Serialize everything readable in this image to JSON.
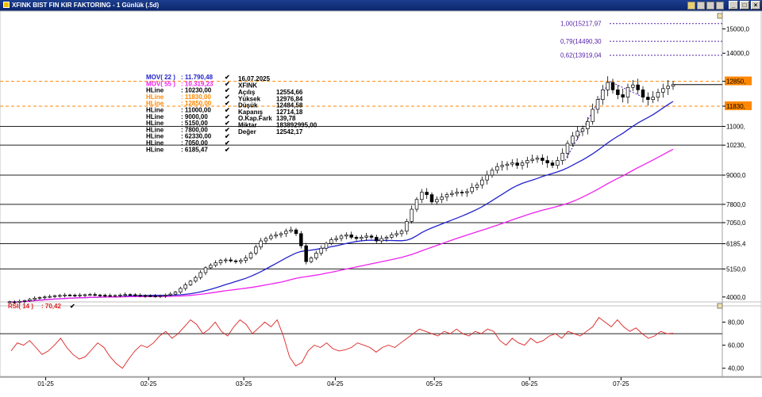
{
  "window": {
    "title": "XFINK BIST FIN KIR FAKTORING - 1 Günlük (.5d)",
    "buttons": [
      "_",
      "□",
      "×"
    ]
  },
  "colors": {
    "mov22": "#2222cc",
    "mov55": "#ee22ee",
    "hline_orange": "#ff8800",
    "fib": "#5522aa",
    "rsi": "#dd2222",
    "candle": "#000000"
  },
  "legend": [
    {
      "label": "MOV( 22 )",
      "value": ": 11.790,48",
      "color": "#2222cc"
    },
    {
      "label": "MOV( 55 )",
      "value": ": 10.319,23",
      "color": "#ee22ee"
    },
    {
      "label": "HLine",
      "value": ": 10230,00",
      "color": "#000000"
    },
    {
      "label": "HLine",
      "value": ": 11830,00",
      "color": "#ff8800"
    },
    {
      "label": "HLine",
      "value": ": 12850,00",
      "color": "#ff8800"
    },
    {
      "label": "HLine",
      "value": ": 11000,00",
      "color": "#000000"
    },
    {
      "label": "HLine",
      "value": ": 9000,00",
      "color": "#000000"
    },
    {
      "label": "HLine",
      "value": ": 5150,00",
      "color": "#000000"
    },
    {
      "label": "HLine",
      "value": ": 7800,00",
      "color": "#000000"
    },
    {
      "label": "HLine",
      "value": ": 62330,00",
      "color": "#000000"
    },
    {
      "label": "HLine",
      "value": ": 7050,00",
      "color": "#000000"
    },
    {
      "label": "HLine",
      "value": ": 6185,47",
      "color": "#000000"
    }
  ],
  "info": {
    "date": "16.07.2025",
    "symbol": "XFINK",
    "rows": [
      {
        "label": "Açılış",
        "value": "12554,66"
      },
      {
        "label": "Yüksek",
        "value": "12976,84"
      },
      {
        "label": "Düşük",
        "value": "12484,58"
      },
      {
        "label": "Kapanış",
        "value": "12714,18"
      },
      {
        "label": "O.Kap.Fark",
        "value": "139,78"
      },
      {
        "label": "Miktar",
        "value": "183892995,00"
      },
      {
        "label": "Değer",
        "value": "12542,17"
      }
    ]
  },
  "rsi": {
    "label": "RSI( 14 )",
    "value": ": 70,42"
  },
  "chart_data": [
    {
      "type": "candlestick",
      "title": "XFINK BIST FIN KIR FAKTORING - 1 Günlük (.5d)",
      "x_ticks": [
        "01-25",
        "02-25",
        "03-25",
        "04-25",
        "05-25",
        "06-25",
        "07-25"
      ],
      "y_ticks": [
        "15000,0",
        "14000,0",
        "12850,",
        "11830,",
        "11000,",
        "10230,",
        "9000,0",
        "7800,0",
        "7050,0",
        "6185,4",
        "5150,0",
        "4000,0"
      ],
      "ylim": [
        3700,
        15600
      ],
      "close_series": [
        3800,
        3780,
        3820,
        3850,
        3900,
        3950,
        3980,
        4000,
        4020,
        4050,
        4060,
        4080,
        4070,
        4060,
        4080,
        4090,
        4100,
        4080,
        4070,
        4060,
        4050,
        4060,
        4080,
        4100,
        4090,
        4070,
        4060,
        4050,
        4040,
        4030,
        4050,
        4080,
        4120,
        4200,
        4350,
        4500,
        4650,
        4800,
        5000,
        5200,
        5300,
        5400,
        5500,
        5520,
        5480,
        5450,
        5500,
        5600,
        5800,
        6050,
        6300,
        6400,
        6500,
        6550,
        6600,
        6700,
        6750,
        6600,
        6100,
        5450,
        5600,
        5800,
        6000,
        6200,
        6350,
        6400,
        6500,
        6550,
        6450,
        6400,
        6450,
        6500,
        6450,
        6300,
        6400,
        6450,
        6550,
        6600,
        6700,
        7100,
        7600,
        8000,
        8300,
        8200,
        7900,
        8000,
        8100,
        8200,
        8250,
        8300,
        8280,
        8320,
        8500,
        8600,
        8800,
        9000,
        9200,
        9350,
        9400,
        9450,
        9500,
        9400,
        9500,
        9600,
        9650,
        9700,
        9600,
        9500,
        9400,
        9600,
        9900,
        10300,
        10600,
        10800,
        10900,
        11200,
        11700,
        12100,
        12500,
        12800,
        12500,
        12300,
        12200,
        12600,
        12700,
        12500,
        12200,
        12100,
        12200,
        12400,
        12550,
        12650,
        12714
      ],
      "hlines": [
        12850,
        11830,
        11000,
        10230,
        9000,
        7800,
        7050,
        6185.47,
        5150
      ],
      "fib_levels": [
        {
          "label": "1,00(15217,97",
          "value": 15217.97
        },
        {
          "label": "0,79(14490,30",
          "value": 14490.3
        },
        {
          "label": "0,62(13919,04",
          "value": 13919.04
        }
      ],
      "series": [
        {
          "name": "MOV( 22 )",
          "last": 11790.48
        },
        {
          "name": "MOV( 55 )",
          "last": 10319.23
        }
      ]
    },
    {
      "type": "line",
      "title": "RSI( 14 )",
      "y_ticks": [
        "80,00",
        "60,00",
        "40,00"
      ],
      "ylim": [
        35,
        90
      ],
      "hline": 70,
      "values": [
        55,
        62,
        60,
        64,
        58,
        52,
        55,
        60,
        66,
        58,
        52,
        48,
        50,
        56,
        62,
        58,
        50,
        44,
        40,
        48,
        55,
        60,
        58,
        62,
        68,
        72,
        66,
        70,
        76,
        82,
        78,
        70,
        74,
        80,
        72,
        68,
        76,
        82,
        78,
        70,
        75,
        80,
        76,
        82,
        68,
        50,
        42,
        45,
        55,
        60,
        58,
        62,
        57,
        55,
        56,
        58,
        62,
        60,
        58,
        54,
        58,
        60,
        58,
        62,
        66,
        70,
        74,
        72,
        70,
        68,
        72,
        70,
        74,
        70,
        68,
        72,
        70,
        74,
        72,
        64,
        60,
        66,
        62,
        60,
        66,
        62,
        64,
        68,
        70,
        66,
        72,
        70,
        68,
        72,
        76,
        84,
        80,
        76,
        82,
        76,
        72,
        75,
        70,
        66,
        68,
        72,
        70,
        70.42
      ],
      "xlim_frac_note": ""
    }
  ]
}
